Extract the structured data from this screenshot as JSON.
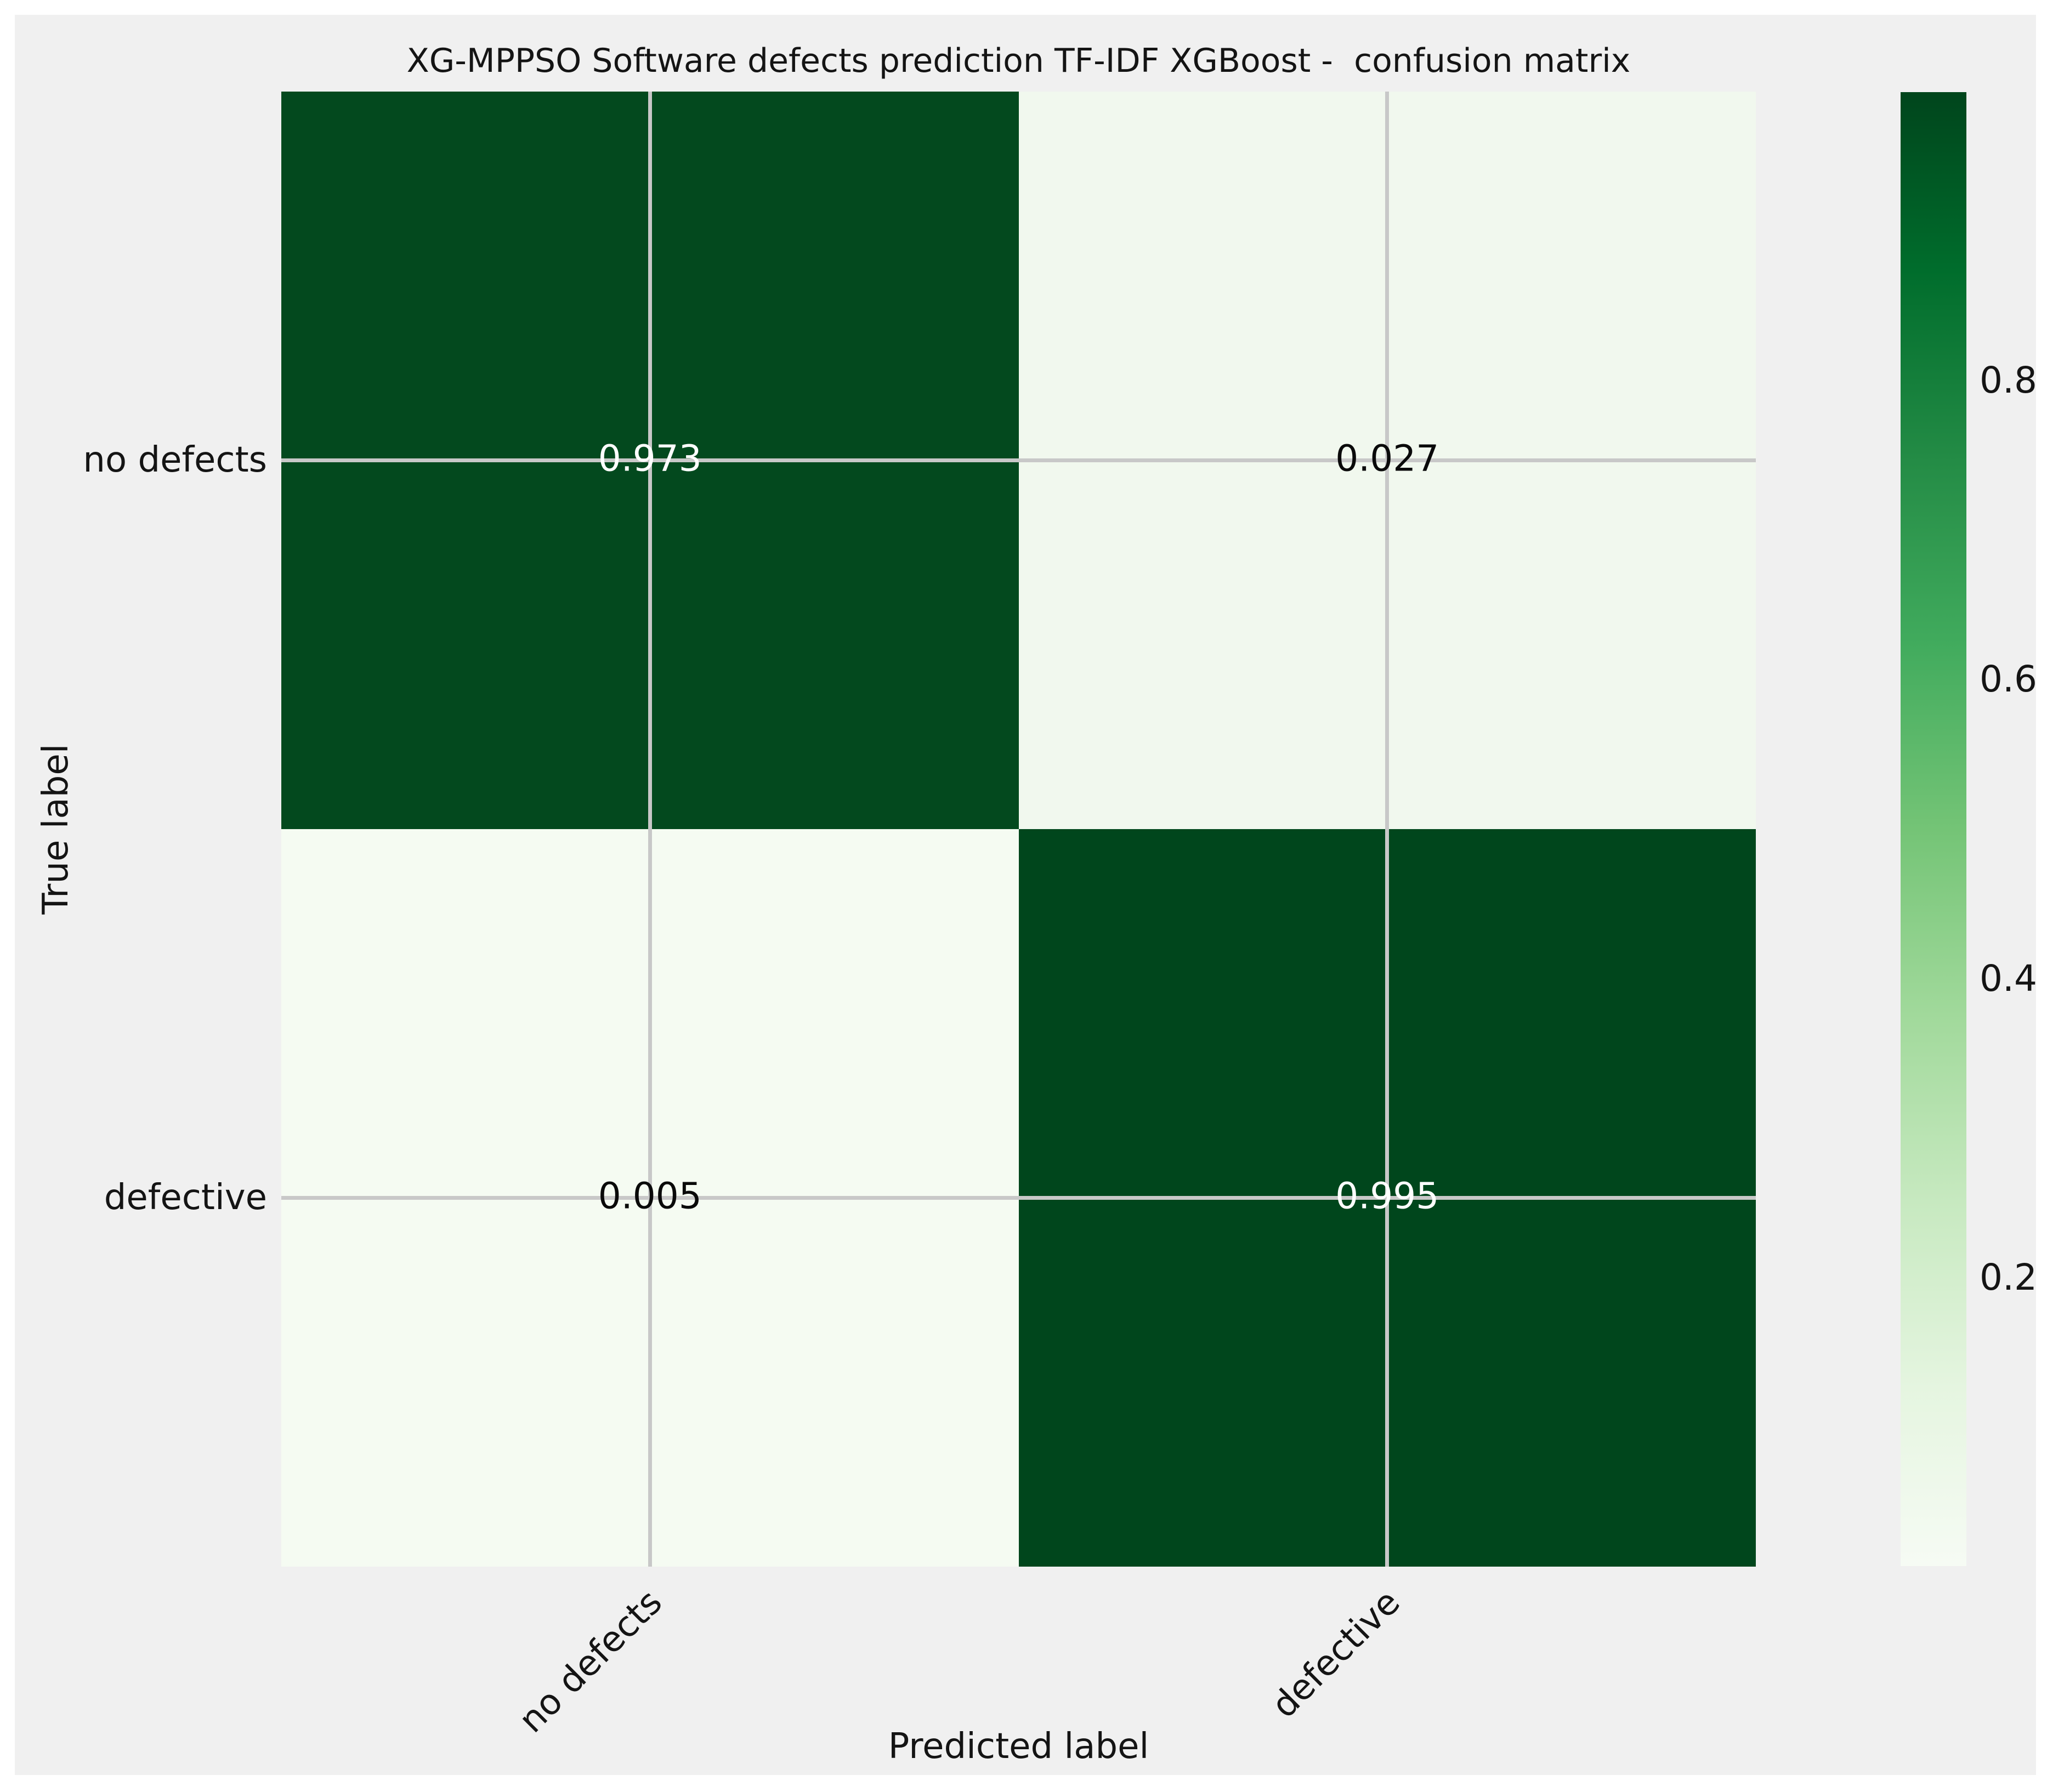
{
  "title": "XG-MPPSO Software defects prediction TF-IDF XGBoost -  confusion matrix",
  "chart_data": {
    "type": "heatmap",
    "title": "XG-MPPSO Software defects prediction TF-IDF XGBoost -  confusion matrix",
    "xlabel": "Predicted label",
    "ylabel": "True label",
    "xticklabels": [
      "no defects",
      "defective"
    ],
    "yticklabels": [
      "no defects",
      "defective"
    ],
    "rows": [
      [
        0.973,
        0.027
      ],
      [
        0.005,
        0.995
      ]
    ],
    "cells": [
      {
        "row": "no defects",
        "col": "no defects",
        "value": "0.973"
      },
      {
        "row": "no defects",
        "col": "defective",
        "value": "0.027"
      },
      {
        "row": "defective",
        "col": "no defects",
        "value": "0.005"
      },
      {
        "row": "defective",
        "col": "defective",
        "value": "0.995"
      }
    ],
    "colormap": "Greens",
    "vmin": 0.005,
    "vmax": 0.995,
    "colorbar": {
      "position": "right",
      "ticks": [
        {
          "label": "0.8",
          "value": 0.8
        },
        {
          "label": "0.6",
          "value": 0.6
        },
        {
          "label": "0.4",
          "value": 0.4
        },
        {
          "label": "0.2",
          "value": 0.2
        }
      ]
    },
    "grid": true,
    "colors": {
      "figure_background": "#f0f0f0",
      "page_background": "#ffffff",
      "cell_0973": "#03491e",
      "cell_0027": "#f1f8ee",
      "cell_0005": "#f5fbf2",
      "cell_0995": "#00461c",
      "colormap_high": "#00441b",
      "colormap_low": "#f7fcf5",
      "gridline": "#c8c8c8",
      "text_on_dark": "#ffffff",
      "text_on_light": "#0a0a0a"
    }
  }
}
